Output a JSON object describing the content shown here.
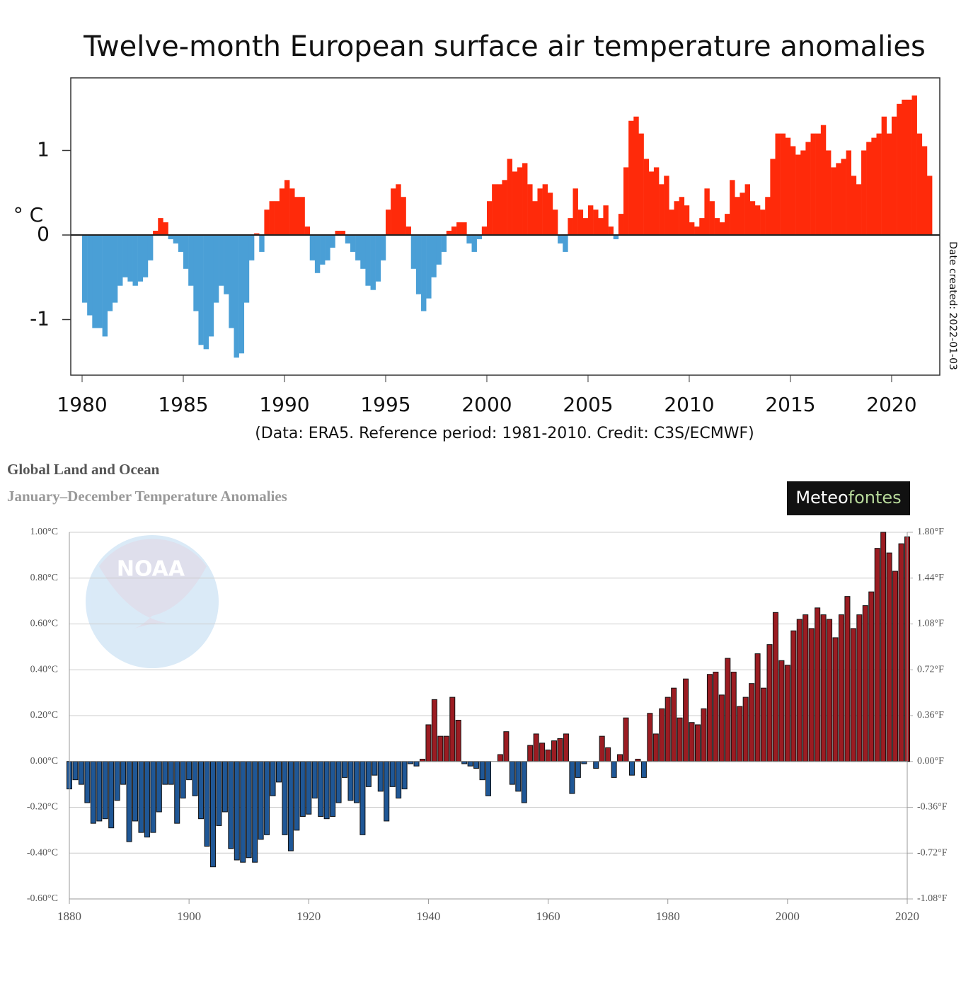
{
  "chart_data": [
    {
      "type": "bar",
      "title": "Twelve-month European surface air temperature anomalies",
      "subtitle": "(Data: ERA5.  Reference period: 1981-2010.  Credit: C3S/ECMWF)",
      "y_label": "° C",
      "annotation": "Date created: 2022-01-03",
      "positive_color": "#ff2a0a",
      "negative_color": "#4a9fd6",
      "xlim": [
        1979.44,
        2022.38
      ],
      "xticks": [
        1980,
        1985,
        1990,
        1995,
        2000,
        2005,
        2010,
        2015,
        2020
      ],
      "ylim": [
        -1.657,
        1.858
      ],
      "yticks": [
        -1,
        0,
        1
      ],
      "x": [
        1980,
        1980.25,
        1980.5,
        1980.75,
        1981,
        1981.25,
        1981.5,
        1981.75,
        1982,
        1982.25,
        1982.5,
        1982.75,
        1983,
        1983.25,
        1983.5,
        1983.75,
        1984,
        1984.25,
        1984.5,
        1984.75,
        1985,
        1985.25,
        1985.5,
        1985.75,
        1986,
        1986.25,
        1986.5,
        1986.75,
        1987,
        1987.25,
        1987.5,
        1987.75,
        1988,
        1988.25,
        1988.5,
        1988.75,
        1989,
        1989.25,
        1989.5,
        1989.75,
        1990,
        1990.25,
        1990.5,
        1990.75,
        1991,
        1991.25,
        1991.5,
        1991.75,
        1992,
        1992.25,
        1992.5,
        1992.75,
        1993,
        1993.25,
        1993.5,
        1993.75,
        1994,
        1994.25,
        1994.5,
        1994.75,
        1995,
        1995.25,
        1995.5,
        1995.75,
        1996,
        1996.25,
        1996.5,
        1996.75,
        1997,
        1997.25,
        1997.5,
        1997.75,
        1998,
        1998.25,
        1998.5,
        1998.75,
        1999,
        1999.25,
        1999.5,
        1999.75,
        2000,
        2000.25,
        2000.5,
        2000.75,
        2001,
        2001.25,
        2001.5,
        2001.75,
        2002,
        2002.25,
        2002.5,
        2002.75,
        2003,
        2003.25,
        2003.5,
        2003.75,
        2004,
        2004.25,
        2004.5,
        2004.75,
        2005,
        2005.25,
        2005.5,
        2005.75,
        2006,
        2006.25,
        2006.5,
        2006.75,
        2007,
        2007.25,
        2007.5,
        2007.75,
        2008,
        2008.25,
        2008.5,
        2008.75,
        2009,
        2009.25,
        2009.5,
        2009.75,
        2010,
        2010.25,
        2010.5,
        2010.75,
        2011,
        2011.25,
        2011.5,
        2011.75,
        2012,
        2012.25,
        2012.5,
        2012.75,
        2013,
        2013.25,
        2013.5,
        2013.75,
        2014,
        2014.25,
        2014.5,
        2014.75,
        2015,
        2015.25,
        2015.5,
        2015.75,
        2016,
        2016.25,
        2016.5,
        2016.75,
        2017,
        2017.25,
        2017.5,
        2017.75,
        2018,
        2018.25,
        2018.5,
        2018.75,
        2019,
        2019.25,
        2019.5,
        2019.75,
        2020,
        2020.25,
        2020.5,
        2020.75,
        2021,
        2021.25,
        2021.5,
        2021.75
      ],
      "values": [
        -0.8,
        -0.95,
        -1.1,
        -1.1,
        -1.2,
        -0.9,
        -0.8,
        -0.6,
        -0.5,
        -0.55,
        -0.6,
        -0.55,
        -0.5,
        -0.3,
        0.05,
        0.2,
        0.15,
        -0.05,
        -0.1,
        -0.2,
        -0.4,
        -0.6,
        -0.9,
        -1.3,
        -1.35,
        -1.2,
        -0.8,
        -0.6,
        -0.7,
        -1.1,
        -1.45,
        -1.4,
        -0.8,
        -0.3,
        0.02,
        -0.2,
        0.3,
        0.4,
        0.4,
        0.55,
        0.65,
        0.55,
        0.45,
        0.45,
        0.1,
        -0.3,
        -0.45,
        -0.35,
        -0.3,
        -0.15,
        0.05,
        0.05,
        -0.1,
        -0.2,
        -0.3,
        -0.4,
        -0.6,
        -0.65,
        -0.55,
        -0.3,
        0.3,
        0.55,
        0.6,
        0.45,
        0.1,
        -0.4,
        -0.7,
        -0.9,
        -0.75,
        -0.5,
        -0.35,
        -0.2,
        0.05,
        0.1,
        0.15,
        0.15,
        -0.1,
        -0.2,
        -0.05,
        0.1,
        0.4,
        0.6,
        0.6,
        0.65,
        0.9,
        0.75,
        0.8,
        0.85,
        0.6,
        0.4,
        0.55,
        0.6,
        0.5,
        0.3,
        -0.1,
        -0.2,
        0.2,
        0.55,
        0.3,
        0.2,
        0.35,
        0.3,
        0.2,
        0.35,
        0.1,
        -0.05,
        0.25,
        0.8,
        1.35,
        1.4,
        1.2,
        0.9,
        0.75,
        0.8,
        0.6,
        0.7,
        0.3,
        0.4,
        0.45,
        0.35,
        0.15,
        0.1,
        0.2,
        0.55,
        0.4,
        0.2,
        0.15,
        0.25,
        0.65,
        0.45,
        0.5,
        0.6,
        0.4,
        0.35,
        0.3,
        0.45,
        0.9,
        1.2,
        1.2,
        1.15,
        1.05,
        0.95,
        1.0,
        1.1,
        1.2,
        1.2,
        1.3,
        1.0,
        0.8,
        0.85,
        0.9,
        1.0,
        0.7,
        0.6,
        1.0,
        1.1,
        1.15,
        1.2,
        1.4,
        1.2,
        1.4,
        1.55,
        1.6,
        1.6,
        1.65,
        1.2,
        1.05,
        0.7
      ]
    },
    {
      "type": "bar",
      "title": "Global Land and Ocean",
      "subtitle": "January–December Temperature Anomalies",
      "watermark": [
        "Meteo",
        "fontes"
      ],
      "logo_text": "NOAA",
      "positive_color": "#9b1c22",
      "negative_color": "#1f5796",
      "xlim": [
        1880,
        2020
      ],
      "xticks": [
        1880,
        1900,
        1920,
        1940,
        1960,
        1980,
        2000,
        2020
      ],
      "ylim": [
        -0.6,
        1.0
      ],
      "yticks": [
        {
          "value": -0.6,
          "label": "-0.60°C"
        },
        {
          "value": -0.4,
          "label": "-0.40°C"
        },
        {
          "value": -0.2,
          "label": "-0.20°C"
        },
        {
          "value": 0,
          "label": "0.00°C"
        },
        {
          "value": 0.2,
          "label": "0.20°C"
        },
        {
          "value": 0.4,
          "label": "0.40°C"
        },
        {
          "value": 0.6,
          "label": "0.60°C"
        },
        {
          "value": 0.8,
          "label": "0.80°C"
        },
        {
          "value": 1.0,
          "label": "1.00°C"
        }
      ],
      "y2lim": [
        -1.08,
        1.8
      ],
      "y2ticks": [
        {
          "value": -1.08,
          "label": "-1.08°F"
        },
        {
          "value": -0.72,
          "label": "-0.72°F"
        },
        {
          "value": -0.36,
          "label": "-0.36°F"
        },
        {
          "value": 0,
          "label": "0.00°F"
        },
        {
          "value": 0.36,
          "label": "0.36°F"
        },
        {
          "value": 0.72,
          "label": "0.72°F"
        },
        {
          "value": 1.08,
          "label": "1.08°F"
        },
        {
          "value": 1.44,
          "label": "1.44°F"
        },
        {
          "value": 1.8,
          "label": "1.80°F"
        }
      ],
      "grid": true,
      "x": [
        1880,
        1881,
        1882,
        1883,
        1884,
        1885,
        1886,
        1887,
        1888,
        1889,
        1890,
        1891,
        1892,
        1893,
        1894,
        1895,
        1896,
        1897,
        1898,
        1899,
        1900,
        1901,
        1902,
        1903,
        1904,
        1905,
        1906,
        1907,
        1908,
        1909,
        1910,
        1911,
        1912,
        1913,
        1914,
        1915,
        1916,
        1917,
        1918,
        1919,
        1920,
        1921,
        1922,
        1923,
        1924,
        1925,
        1926,
        1927,
        1928,
        1929,
        1930,
        1931,
        1932,
        1933,
        1934,
        1935,
        1936,
        1937,
        1938,
        1939,
        1940,
        1941,
        1942,
        1943,
        1944,
        1945,
        1946,
        1947,
        1948,
        1949,
        1950,
        1951,
        1952,
        1953,
        1954,
        1955,
        1956,
        1957,
        1958,
        1959,
        1960,
        1961,
        1962,
        1963,
        1964,
        1965,
        1966,
        1967,
        1968,
        1969,
        1970,
        1971,
        1972,
        1973,
        1974,
        1975,
        1976,
        1977,
        1978,
        1979,
        1980,
        1981,
        1982,
        1983,
        1984,
        1985,
        1986,
        1987,
        1988,
        1989,
        1990,
        1991,
        1992,
        1993,
        1994,
        1995,
        1996,
        1997,
        1998,
        1999,
        2000,
        2001,
        2002,
        2003,
        2004,
        2005,
        2006,
        2007,
        2008,
        2009,
        2010,
        2011,
        2012,
        2013,
        2014,
        2015,
        2016,
        2017,
        2018,
        2019,
        2020
      ],
      "values": [
        -0.12,
        -0.08,
        -0.1,
        -0.18,
        -0.27,
        -0.26,
        -0.25,
        -0.29,
        -0.17,
        -0.1,
        -0.35,
        -0.26,
        -0.31,
        -0.33,
        -0.31,
        -0.22,
        -0.1,
        -0.1,
        -0.27,
        -0.16,
        -0.08,
        -0.15,
        -0.25,
        -0.37,
        -0.46,
        -0.28,
        -0.22,
        -0.38,
        -0.43,
        -0.44,
        -0.42,
        -0.44,
        -0.34,
        -0.32,
        -0.15,
        -0.09,
        -0.32,
        -0.39,
        -0.3,
        -0.24,
        -0.23,
        -0.16,
        -0.24,
        -0.25,
        -0.24,
        -0.18,
        -0.07,
        -0.17,
        -0.18,
        -0.32,
        -0.11,
        -0.06,
        -0.13,
        -0.26,
        -0.11,
        -0.16,
        -0.12,
        -0.01,
        -0.02,
        0.01,
        0.16,
        0.27,
        0.11,
        0.11,
        0.28,
        0.18,
        -0.01,
        -0.02,
        -0.03,
        -0.08,
        -0.15,
        0.0,
        0.03,
        0.13,
        -0.1,
        -0.13,
        -0.18,
        0.07,
        0.12,
        0.08,
        0.05,
        0.09,
        0.1,
        0.12,
        -0.14,
        -0.07,
        -0.01,
        0.0,
        -0.03,
        0.11,
        0.06,
        -0.07,
        0.03,
        0.19,
        -0.06,
        0.01,
        -0.07,
        0.21,
        0.12,
        0.23,
        0.28,
        0.32,
        0.19,
        0.36,
        0.17,
        0.16,
        0.23,
        0.38,
        0.39,
        0.29,
        0.45,
        0.39,
        0.24,
        0.28,
        0.34,
        0.47,
        0.32,
        0.51,
        0.65,
        0.44,
        0.42,
        0.57,
        0.62,
        0.64,
        0.58,
        0.67,
        0.64,
        0.62,
        0.54,
        0.64,
        0.72,
        0.58,
        0.64,
        0.68,
        0.74,
        0.93,
        1.0,
        0.91,
        0.83,
        0.95,
        0.98
      ]
    }
  ]
}
